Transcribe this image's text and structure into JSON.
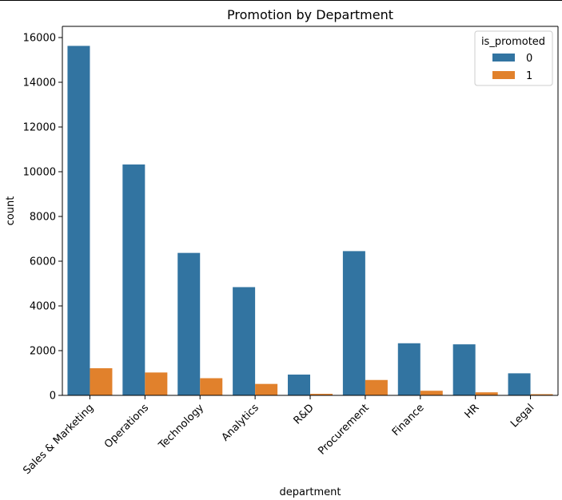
{
  "chart_data": {
    "type": "bar",
    "title": "Promotion by Department",
    "xlabel": "department",
    "ylabel": "count",
    "categories": [
      "Sales & Marketing",
      "Operations",
      "Technology",
      "Analytics",
      "R&D",
      "Procurement",
      "Finance",
      "HR",
      "Legal"
    ],
    "series": [
      {
        "name": "0",
        "color": "#3274a1",
        "values": [
          15627,
          10325,
          6370,
          4840,
          930,
          6450,
          2330,
          2282,
          986
        ]
      },
      {
        "name": "1",
        "color": "#e1812c",
        "values": [
          1213,
          1023,
          768,
          512,
          69,
          688,
          206,
          136,
          53
        ]
      }
    ],
    "ylim": [
      0,
      16500
    ],
    "yticks": [
      0,
      2000,
      4000,
      6000,
      8000,
      10000,
      12000,
      14000,
      16000
    ],
    "grid": false,
    "legend": {
      "title": "is_promoted",
      "placement": "top-right"
    }
  }
}
